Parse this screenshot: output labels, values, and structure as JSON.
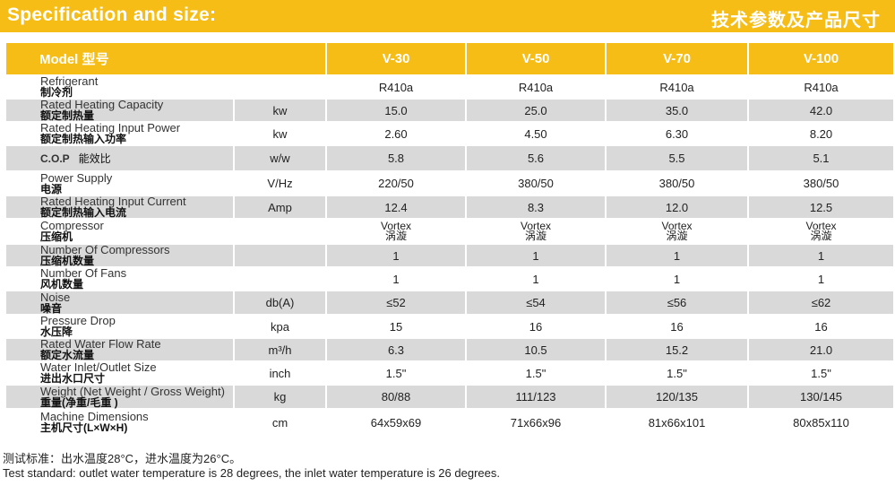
{
  "header": {
    "title_en": "Specification and size:",
    "title_cn": "技术参数及产品尺寸"
  },
  "table": {
    "columns": {
      "label": "Model 型号",
      "models": [
        "V-30",
        "V-50",
        "V-70",
        "V-100"
      ]
    },
    "rows": [
      {
        "en": "Refrigerant",
        "cn": "制冷剂",
        "unit": "",
        "values": [
          "R410a",
          "R410a",
          "R410a",
          "R410a"
        ]
      },
      {
        "en": "Rated Heating Capacity",
        "cn": "额定制热量",
        "unit": "kw",
        "values": [
          "15.0",
          "25.0",
          "35.0",
          "42.0"
        ]
      },
      {
        "en": "Rated Heating Input Power",
        "cn": "额定制热输入功率",
        "unit": "kw",
        "values": [
          "2.60",
          "4.50",
          "6.30",
          "8.20"
        ]
      },
      {
        "en": "C.O.P",
        "cn": "能效比",
        "unit": "w/w",
        "values": [
          "5.8",
          "5.6",
          "5.5",
          "5.1"
        ],
        "inline": true
      },
      {
        "en": "Power Supply",
        "cn": "电源",
        "unit": "V/Hz",
        "values": [
          "220/50",
          "380/50",
          "380/50",
          "380/50"
        ]
      },
      {
        "en": "Rated Heating Input Current",
        "cn": "额定制热输入电流",
        "unit": "Amp",
        "values": [
          "12.4",
          "8.3",
          "12.0",
          "12.5"
        ]
      },
      {
        "en": "Compressor",
        "cn": "压缩机",
        "unit": "",
        "values": [
          "Vortex",
          "Vortex",
          "Vortex",
          "Vortex"
        ],
        "values_cn": [
          "涡漩",
          "涡漩",
          "涡漩",
          "涡漩"
        ]
      },
      {
        "en": "Number Of Compressors",
        "cn": "压缩机数量",
        "unit": "",
        "values": [
          "1",
          "1",
          "1",
          "1"
        ]
      },
      {
        "en": "Number Of Fans",
        "cn": "风机数量",
        "unit": "",
        "values": [
          "1",
          "1",
          "1",
          "1"
        ]
      },
      {
        "en": "Noise",
        "cn": "噪音",
        "unit": "db(A)",
        "values": [
          "≤52",
          "≤54",
          "≤56",
          "≤62"
        ]
      },
      {
        "en": "Pressure Drop",
        "cn": "水压降",
        "unit": "kpa",
        "values": [
          "15",
          "16",
          "16",
          "16"
        ]
      },
      {
        "en": "Rated Water Flow Rate",
        "cn": "额定水流量",
        "unit": "m³/h",
        "values": [
          "6.3",
          "10.5",
          "15.2",
          "21.0"
        ]
      },
      {
        "en": "Water Inlet/Outlet Size",
        "cn": "进出水口尺寸",
        "unit": "inch",
        "values": [
          "1.5\"",
          "1.5\"",
          "1.5\"",
          "1.5\""
        ]
      },
      {
        "en": "Weight (Net Weight / Gross Weight)",
        "cn": "重量(净重/毛重 )",
        "unit": "kg",
        "values": [
          "80/88",
          "111/123",
          "120/135",
          "130/145"
        ]
      },
      {
        "en": "Machine Dimensions",
        "cn": "主机尺寸(L×W×H)",
        "unit": "cm",
        "values": [
          "64x59x69",
          "71x66x96",
          "81x66x101",
          "80x85x110"
        ]
      }
    ]
  },
  "notes": {
    "cn": "测试标准：出水温度28°C，进水温度为26°C。",
    "en": "Test standard: outlet water temperature is 28 degrees, the inlet water temperature is 26 degrees."
  },
  "colors": {
    "accent": "#f6bd16",
    "row_shade": "#d9d9d9"
  }
}
